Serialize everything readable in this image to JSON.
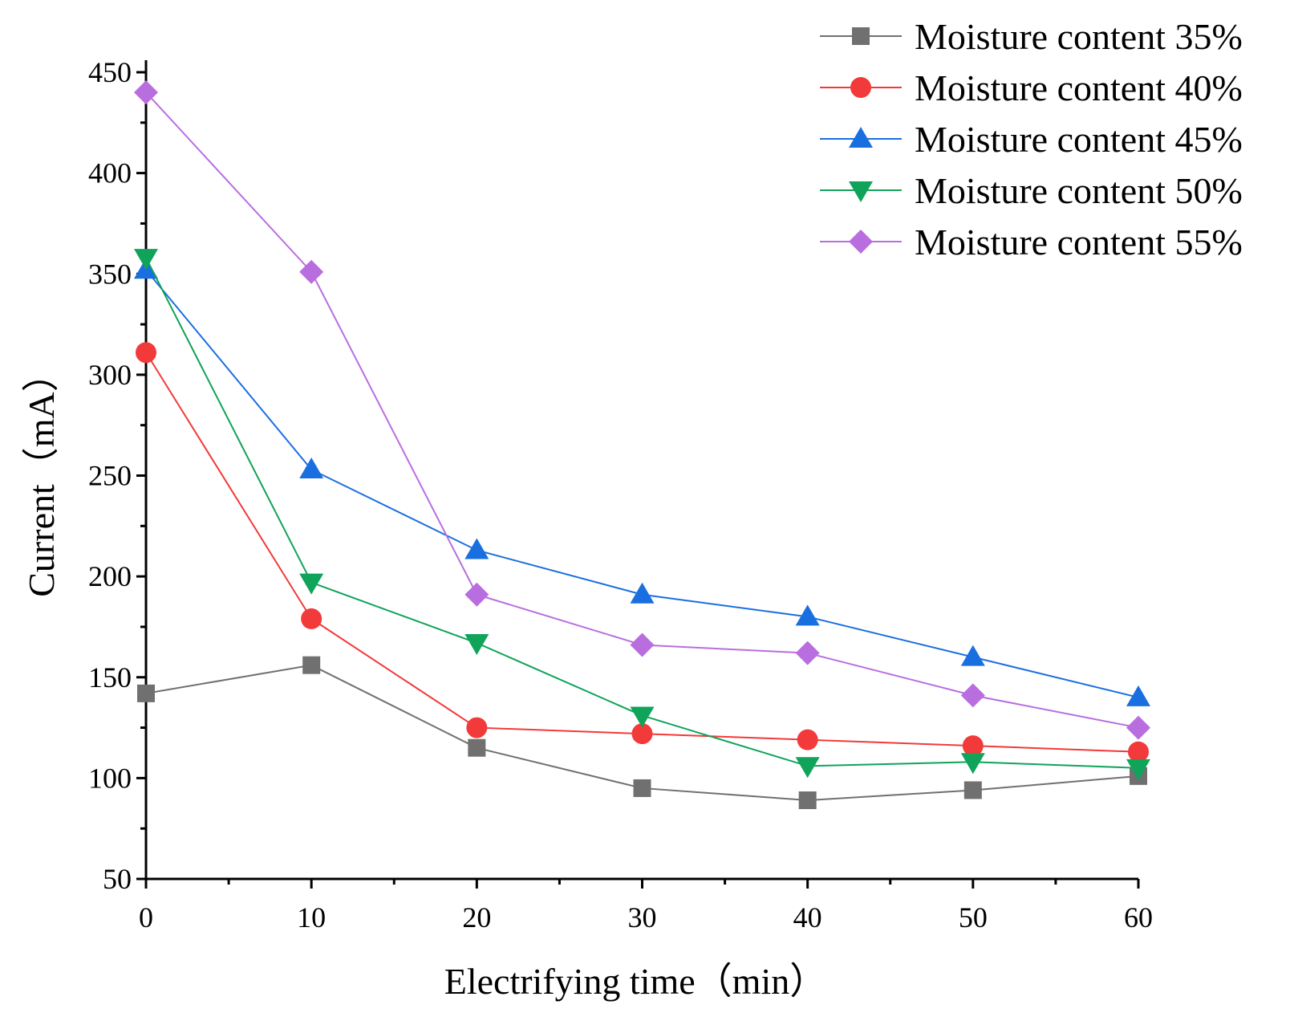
{
  "chart_data": {
    "type": "line",
    "title": "",
    "xlabel": "Electrifying time（min）",
    "ylabel": "Current（mA）",
    "x": [
      0,
      10,
      20,
      30,
      40,
      50,
      60
    ],
    "xlim": [
      0,
      60
    ],
    "ylim": [
      50,
      450
    ],
    "xticks": [
      "0",
      "10",
      "20",
      "30",
      "40",
      "50",
      "60"
    ],
    "yticks": [
      "50",
      "100",
      "150",
      "200",
      "250",
      "300",
      "350",
      "400",
      "450"
    ],
    "grid": false,
    "legend_position": "top-right",
    "series": [
      {
        "name": "Moisture content 35%",
        "marker": "square",
        "color": "#707070",
        "values": [
          142,
          156,
          115,
          95,
          89,
          94,
          101
        ]
      },
      {
        "name": "Moisture content 40%",
        "marker": "circle",
        "color": "#f23a3a",
        "values": [
          311,
          179,
          125,
          122,
          119,
          116,
          113
        ]
      },
      {
        "name": "Moisture content 45%",
        "marker": "triangle-up",
        "color": "#1a6fe0",
        "values": [
          352,
          253,
          213,
          191,
          180,
          160,
          140
        ]
      },
      {
        "name": "Moisture content 50%",
        "marker": "triangle-down",
        "color": "#10a35a",
        "values": [
          358,
          197,
          167,
          131,
          106,
          108,
          105
        ]
      },
      {
        "name": "Moisture content 55%",
        "marker": "diamond",
        "color": "#b96ee0",
        "values": [
          440,
          351,
          191,
          166,
          162,
          141,
          125
        ]
      }
    ]
  }
}
